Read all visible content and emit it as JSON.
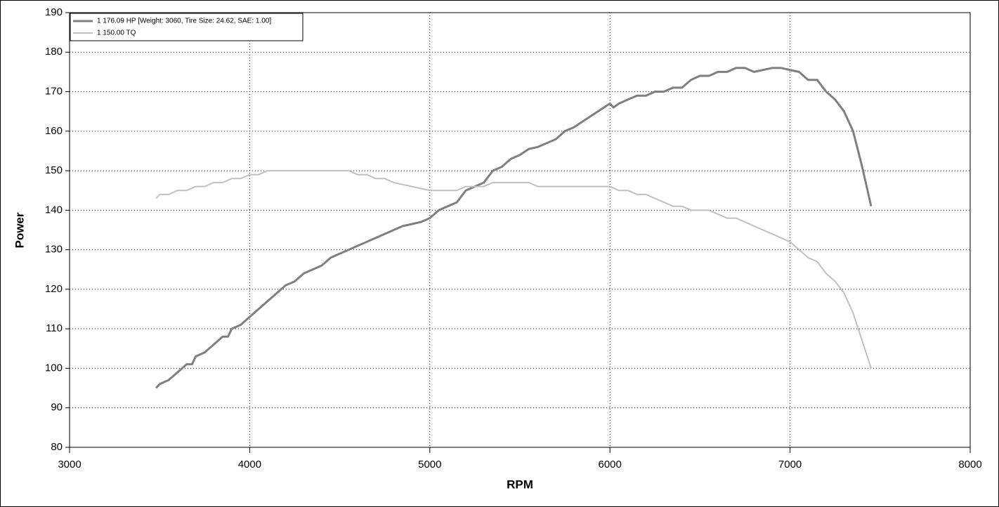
{
  "chart_data": {
    "type": "line",
    "x_label": "RPM",
    "y_label": "Power",
    "xlim": [
      3000,
      8000
    ],
    "xticks": [
      3000,
      4000,
      5000,
      6000,
      7000,
      8000
    ],
    "ylim": [
      80,
      190
    ],
    "yticks": [
      80,
      90,
      100,
      110,
      120,
      130,
      140,
      150,
      160,
      170,
      180,
      190
    ],
    "grid": true,
    "legend": "top-left",
    "series": [
      {
        "name": "1 176.09 HP [Weight: 3060, Tire Size: 24.62, SAE: 1.00]",
        "color": "#7f7f7f",
        "x": [
          3480,
          3500,
          3550,
          3600,
          3650,
          3680,
          3700,
          3750,
          3800,
          3850,
          3880,
          3900,
          3950,
          4000,
          4050,
          4100,
          4150,
          4200,
          4250,
          4300,
          4350,
          4400,
          4450,
          4500,
          4550,
          4600,
          4650,
          4700,
          4750,
          4800,
          4850,
          4900,
          4950,
          5000,
          5050,
          5100,
          5150,
          5200,
          5250,
          5300,
          5350,
          5400,
          5450,
          5500,
          5550,
          5600,
          5650,
          5700,
          5750,
          5800,
          5850,
          5900,
          5950,
          6000,
          6020,
          6050,
          6100,
          6150,
          6200,
          6250,
          6300,
          6350,
          6400,
          6450,
          6500,
          6550,
          6600,
          6650,
          6700,
          6750,
          6800,
          6850,
          6900,
          6950,
          7000,
          7050,
          7100,
          7150,
          7200,
          7250,
          7300,
          7350,
          7400,
          7450
        ],
        "values": [
          95,
          96,
          97,
          99,
          101,
          101,
          103,
          104,
          106,
          108,
          108,
          110,
          111,
          113,
          115,
          117,
          119,
          121,
          122,
          124,
          125,
          126,
          128,
          129,
          130,
          131,
          132,
          133,
          134,
          135,
          136,
          136.5,
          137,
          138,
          140,
          141,
          142,
          145,
          146,
          147,
          150,
          151,
          153,
          154,
          155.5,
          156,
          157,
          158,
          160,
          161,
          162.5,
          164,
          165.5,
          167,
          166,
          167,
          168,
          169,
          169,
          170,
          170,
          171,
          171,
          173,
          174,
          174,
          175,
          175,
          176,
          176,
          175,
          175.5,
          176,
          176,
          175.5,
          175,
          173,
          173,
          170,
          168,
          165,
          160,
          151,
          141
        ]
      },
      {
        "name": "1 150.00 TQ",
        "color": "#c0c0c0",
        "x": [
          3480,
          3500,
          3550,
          3600,
          3650,
          3700,
          3750,
          3800,
          3850,
          3900,
          3950,
          4000,
          4050,
          4100,
          4200,
          4300,
          4400,
          4500,
          4550,
          4600,
          4650,
          4700,
          4750,
          4800,
          4850,
          4900,
          4950,
          5000,
          5100,
          5150,
          5200,
          5250,
          5300,
          5350,
          5400,
          5500,
          5550,
          5600,
          5700,
          5800,
          5900,
          6000,
          6050,
          6100,
          6150,
          6200,
          6250,
          6300,
          6350,
          6400,
          6450,
          6500,
          6550,
          6600,
          6650,
          6700,
          6750,
          6800,
          6850,
          6900,
          6950,
          7000,
          7050,
          7100,
          7150,
          7200,
          7250,
          7300,
          7350,
          7400,
          7450
        ],
        "values": [
          143,
          144,
          144,
          145,
          145,
          146,
          146,
          147,
          147,
          148,
          148,
          149,
          149,
          150,
          150,
          150,
          150,
          150,
          150,
          149,
          149,
          148,
          148,
          147,
          146.5,
          146,
          145.5,
          145,
          145,
          145,
          146,
          146,
          146,
          147,
          147,
          147,
          147,
          146,
          146,
          146,
          146,
          146,
          145,
          145,
          144,
          144,
          143,
          142,
          141,
          141,
          140,
          140,
          140,
          139,
          138,
          138,
          137,
          136,
          135,
          134,
          133,
          132,
          130,
          128,
          127,
          124,
          122,
          119,
          114,
          107,
          100
        ]
      }
    ]
  }
}
